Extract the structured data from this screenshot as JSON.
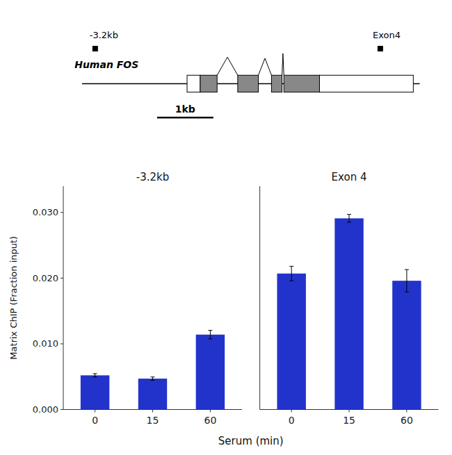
{
  "chart_data": [
    {
      "type": "bar",
      "title": "-3.2kb",
      "categories": [
        "0",
        "15",
        "60"
      ],
      "values": [
        0.0052,
        0.0047,
        0.0114
      ],
      "errors": [
        0.00025,
        0.00025,
        0.00065
      ],
      "color": "#2233CC",
      "ylim": [
        0,
        0.034
      ],
      "yticks": [
        {
          "value": 0.0,
          "label": "0.000"
        },
        {
          "value": 0.01,
          "label": "0.010"
        },
        {
          "value": 0.02,
          "label": "0.020"
        },
        {
          "value": 0.03,
          "label": "0.030"
        }
      ],
      "ylabel": "Matrix ChIP (Fraction input)",
      "xlabel": "Serum (min)",
      "grid": false,
      "annotations": [
        "Human FOS",
        "-3.2kb",
        "Exon4",
        "1kb"
      ]
    },
    {
      "type": "bar",
      "title": "Exon 4",
      "categories": [
        "0",
        "15",
        "60"
      ],
      "values": [
        0.0207,
        0.0291,
        0.0196
      ],
      "errors": [
        0.0011,
        0.0006,
        0.0017
      ],
      "color": "#2233CC",
      "ylim": [
        0,
        0.034
      ],
      "grid": false,
      "tick_labels": "x"
    }
  ]
}
